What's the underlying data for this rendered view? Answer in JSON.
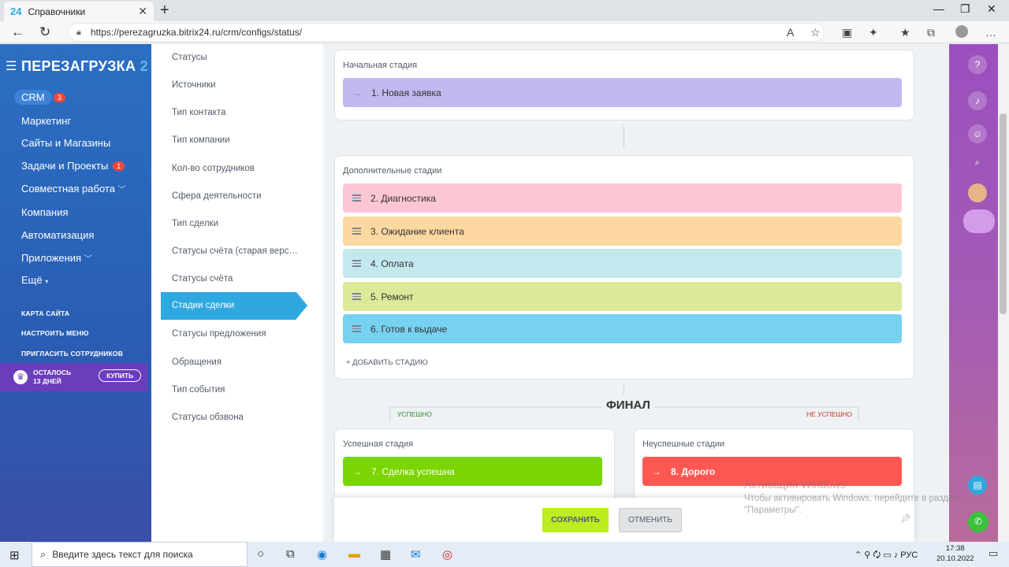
{
  "browser": {
    "tab_title": "Справочники",
    "tab_badge": "24",
    "url": "https://perezagruzka.bitrix24.ru/crm/configs/status/"
  },
  "leftnav": {
    "logo": "ПЕРЕЗАГРУЗКА",
    "logo_suffix": "2",
    "crm_label": "CRM",
    "crm_count": "3",
    "items": [
      {
        "label": "Маркетинг"
      },
      {
        "label": "Сайты и Магазины"
      },
      {
        "label": "Задачи и Проекты",
        "count": "1"
      },
      {
        "label": "Совместная работа"
      },
      {
        "label": "Компания"
      },
      {
        "label": "Автоматизация"
      },
      {
        "label": "Приложения"
      },
      {
        "label": "Ещё"
      }
    ],
    "links": [
      "КАРТА САЙТА",
      "НАСТРОИТЬ МЕНЮ",
      "ПРИГЛАСИТЬ СОТРУДНИКОВ"
    ],
    "trial_line1": "ОСТАЛОСЬ",
    "trial_line2": "13 ДНЕЙ",
    "buy_label": "КУПИТЬ"
  },
  "settings_menu": [
    "Статусы",
    "Источники",
    "Тип контакта",
    "Тип компании",
    "Кол-во сотрудников",
    "Сфера деятельности",
    "Тип сделки",
    "Статусы счёта (старая верс…",
    "Статусы счёта",
    "Стадии сделки",
    "Статусы предложения",
    "Обращения",
    "Тип события",
    "Статусы обзвона"
  ],
  "settings_active": "Стадии сделки",
  "initial": {
    "title": "Начальная стадия",
    "stage": {
      "label": "1. Новая заявка",
      "color": "#c3b9ee"
    }
  },
  "additional": {
    "title": "Дополнительные стадии",
    "stages": [
      {
        "label": "2. Диагностика",
        "color": "#fcc6d5"
      },
      {
        "label": "3. Ожидание клиента",
        "color": "#fed8a1"
      },
      {
        "label": "4. Оплата",
        "color": "#c3e9ef"
      },
      {
        "label": "5. Ремонт",
        "color": "#dbe998"
      },
      {
        "label": "6. Готов к выдаче",
        "color": "#77d1f1"
      }
    ],
    "add_label": "+ ДОБАВИТЬ СТАДИЮ"
  },
  "final": {
    "title": "ФИНАЛ",
    "success_label": "УСПЕШНО",
    "fail_label": "НЕ УСПЕШНО",
    "success_panel_title": "Успешная стадия",
    "success_stage": {
      "label": "7. Сделка успешна",
      "color": "#7bd500"
    },
    "fail_panel_title": "Неуспешные стадии",
    "fail_stage": {
      "label": "8. Дорого",
      "color": "#ff5752"
    }
  },
  "actions": {
    "save": "СОХРАНИТЬ",
    "cancel": "ОТМЕНИТЬ"
  },
  "watermark": {
    "line1": "Активация Windows",
    "line2": "Чтобы активировать Windows, перейдите в раздел \"Параметры\"."
  },
  "taskbar": {
    "search_placeholder": "Введите здесь текст для поиска",
    "lang": "РУС",
    "time": "17:38",
    "date": "20.10.2022"
  }
}
